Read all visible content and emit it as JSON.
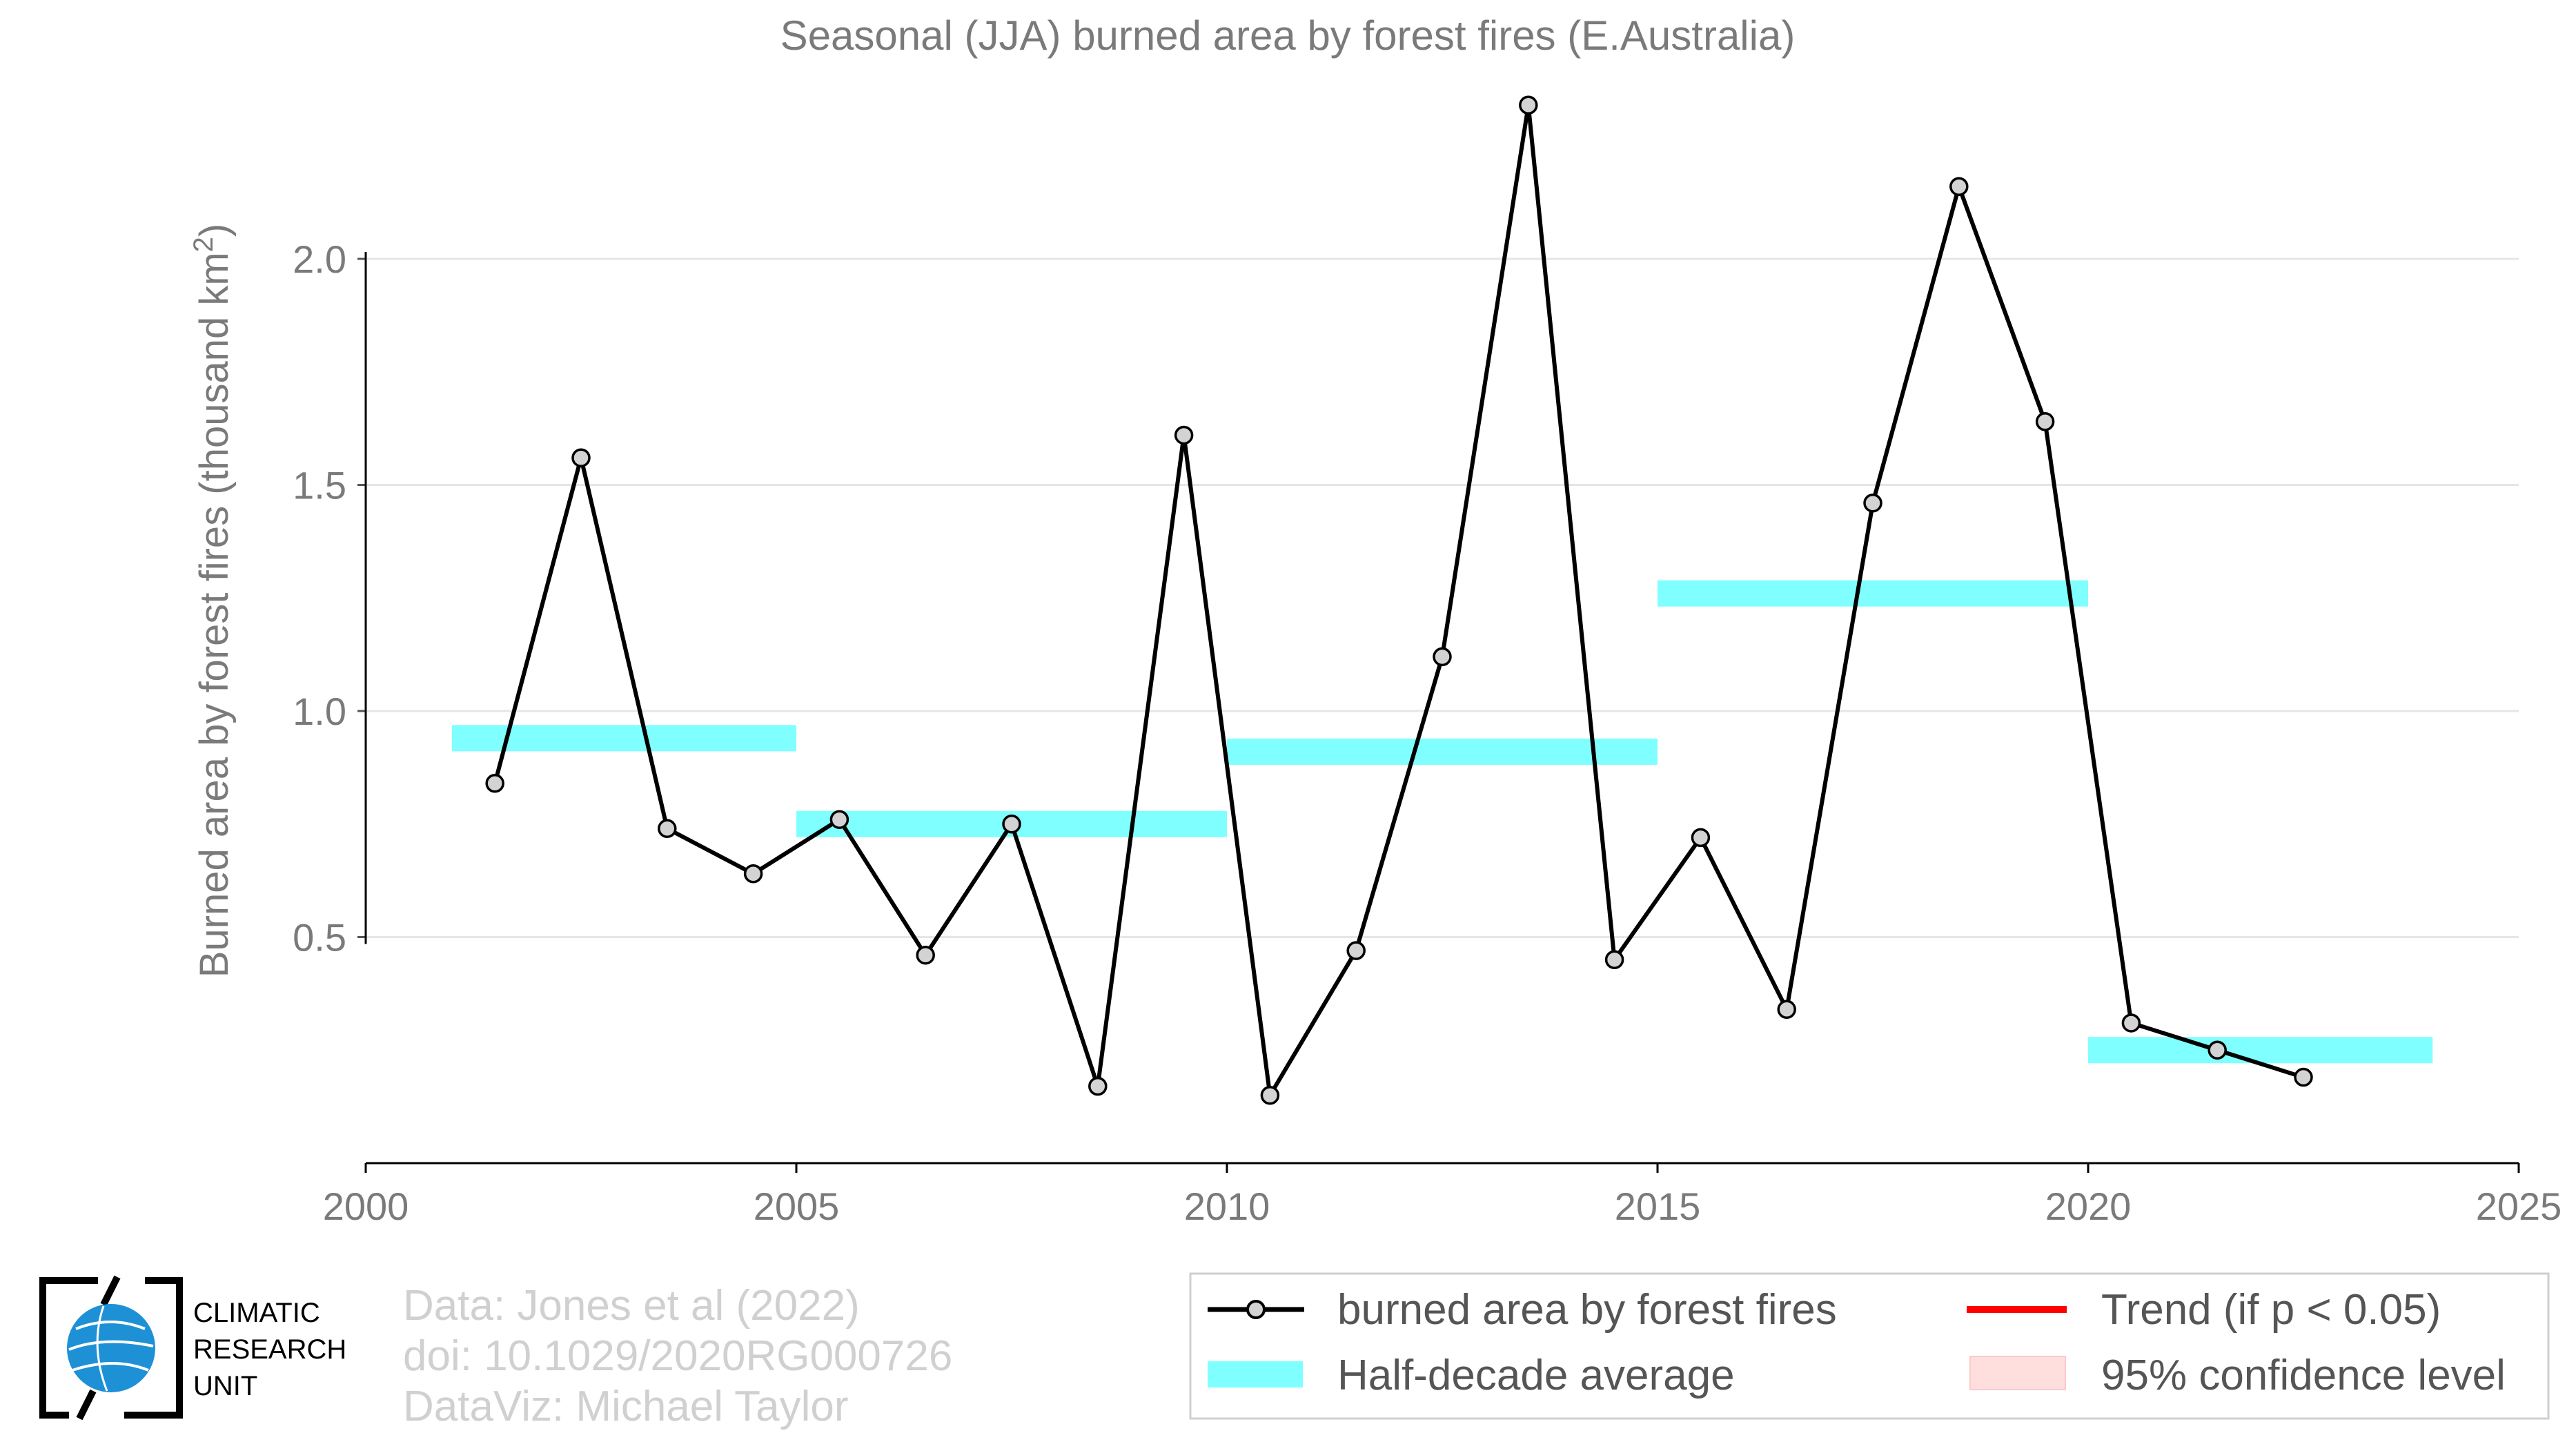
{
  "chart_data": {
    "type": "line",
    "title": "Seasonal (JJA) burned area by forest fires (E.Australia)",
    "xlabel": "",
    "ylabel": "Burned area by forest fires (thousand km",
    "ylabel_superscript": "2",
    "ylabel_close": ")",
    "xlim": [
      2000,
      2025
    ],
    "ylim": [
      0,
      2.4
    ],
    "x_ticks": [
      2000,
      2005,
      2010,
      2015,
      2020,
      2025
    ],
    "y_ticks": [
      0.5,
      1.0,
      1.5,
      2.0
    ],
    "grid": "horizontal",
    "series": [
      {
        "name": "burned area by forest fires",
        "color": "#000000",
        "marker_fill": "#d3d3d3",
        "x": [
          2001.5,
          2002.5,
          2003.5,
          2004.5,
          2005.5,
          2006.5,
          2007.5,
          2008.5,
          2009.5,
          2010.5,
          2011.5,
          2012.5,
          2013.5,
          2014.5,
          2015.5,
          2016.5,
          2017.5,
          2018.5,
          2019.5,
          2020.5,
          2021.5,
          2022.5
        ],
        "values": [
          0.84,
          1.56,
          0.74,
          0.64,
          0.76,
          0.46,
          0.75,
          0.17,
          1.61,
          0.15,
          0.47,
          1.12,
          2.34,
          0.45,
          0.72,
          0.34,
          1.46,
          2.16,
          1.64,
          0.31,
          0.25,
          0.19
        ]
      },
      {
        "name": "Half-decade average",
        "color": "#7fffff",
        "segments": [
          {
            "x_start": 2001,
            "x_end": 2005,
            "value": 0.94
          },
          {
            "x_start": 2005,
            "x_end": 2010,
            "value": 0.75
          },
          {
            "x_start": 2010,
            "x_end": 2015,
            "value": 0.91
          },
          {
            "x_start": 2015,
            "x_end": 2020,
            "value": 1.26
          },
          {
            "x_start": 2020,
            "x_end": 2024,
            "value": 0.25
          }
        ]
      }
    ],
    "legend": {
      "placement": "bottom-right",
      "entries": [
        {
          "label": "burned area by forest fires",
          "kind": "line-marker",
          "color": "#000000"
        },
        {
          "label": "Trend (if p < 0.05)",
          "kind": "line",
          "color": "#ff0000"
        },
        {
          "label": "Half-decade average",
          "kind": "band",
          "color": "#7fffff"
        },
        {
          "label": "95% confidence level",
          "kind": "band",
          "color": "#ffdede"
        }
      ]
    }
  },
  "credits": {
    "line1": "Data: Jones et al (2022)",
    "line2": "doi: 10.1029/2020RG000726",
    "line3": "DataViz: Michael Taylor"
  },
  "logo": {
    "line1": "CLIMATIC",
    "line2": "RESEARCH",
    "line3": "UNIT",
    "globe_color": "#1e90d6"
  }
}
